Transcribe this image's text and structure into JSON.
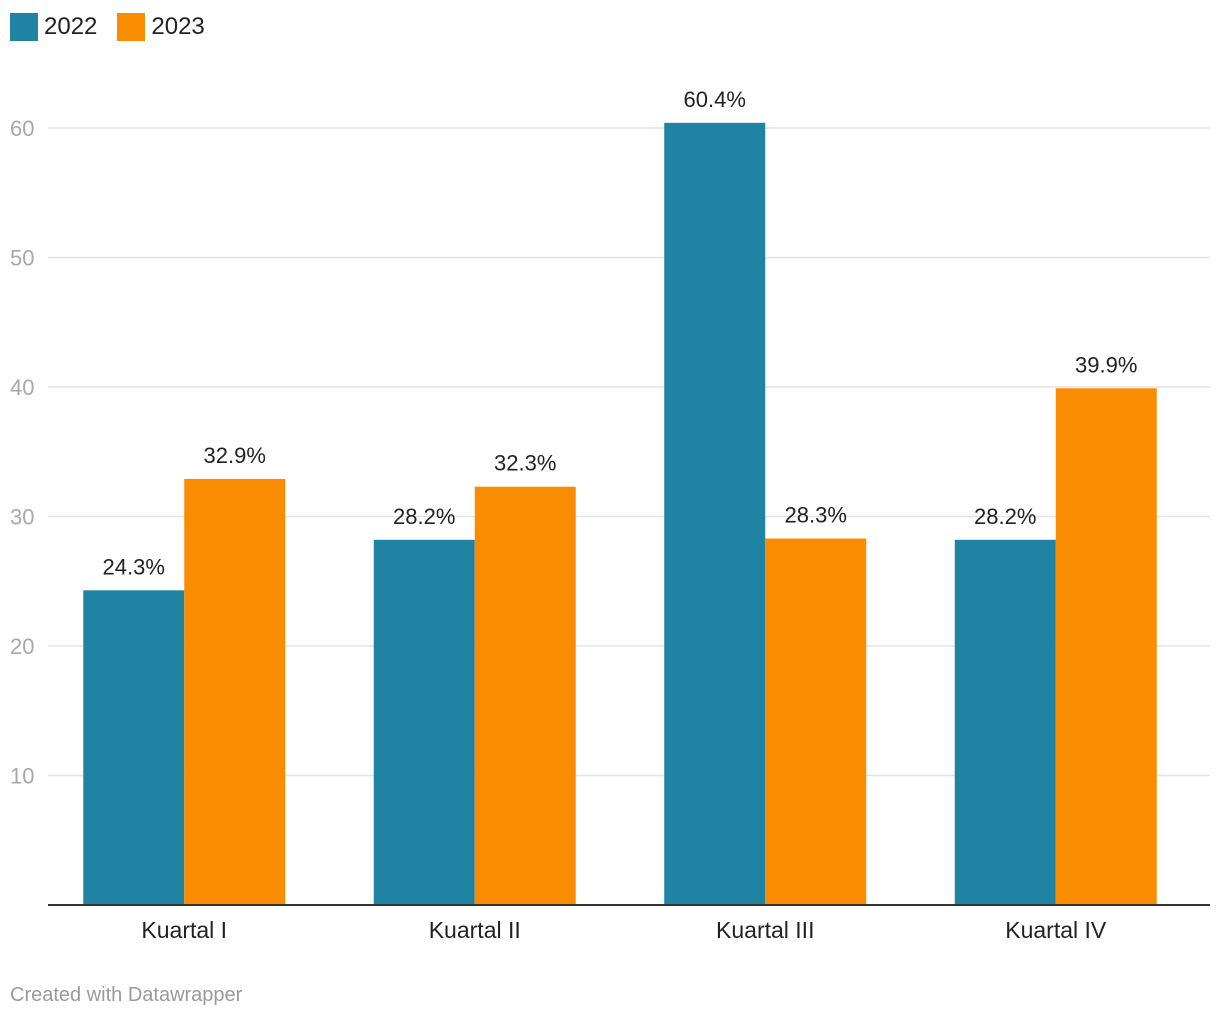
{
  "chart_data": {
    "type": "bar",
    "categories": [
      "Kuartal I",
      "Kuartal II",
      "Kuartal III",
      "Kuartal IV"
    ],
    "series": [
      {
        "name": "2022",
        "color": "#1f83a3",
        "values": [
          24.3,
          28.2,
          60.4,
          28.2
        ],
        "labels": [
          "24.3%",
          "28.2%",
          "60.4%",
          "28.2%"
        ]
      },
      {
        "name": "2023",
        "color": "#f98c00",
        "values": [
          32.9,
          32.3,
          28.3,
          39.9
        ],
        "labels": [
          "32.9%",
          "32.3%",
          "28.3%",
          "39.9%"
        ]
      }
    ],
    "yticks": [
      10,
      20,
      30,
      40,
      50,
      60
    ],
    "ylim": [
      0,
      60
    ],
    "grid": true,
    "legend_position": "top-left",
    "title": "",
    "xlabel": "",
    "ylabel": ""
  },
  "credit": "Created with Datawrapper"
}
